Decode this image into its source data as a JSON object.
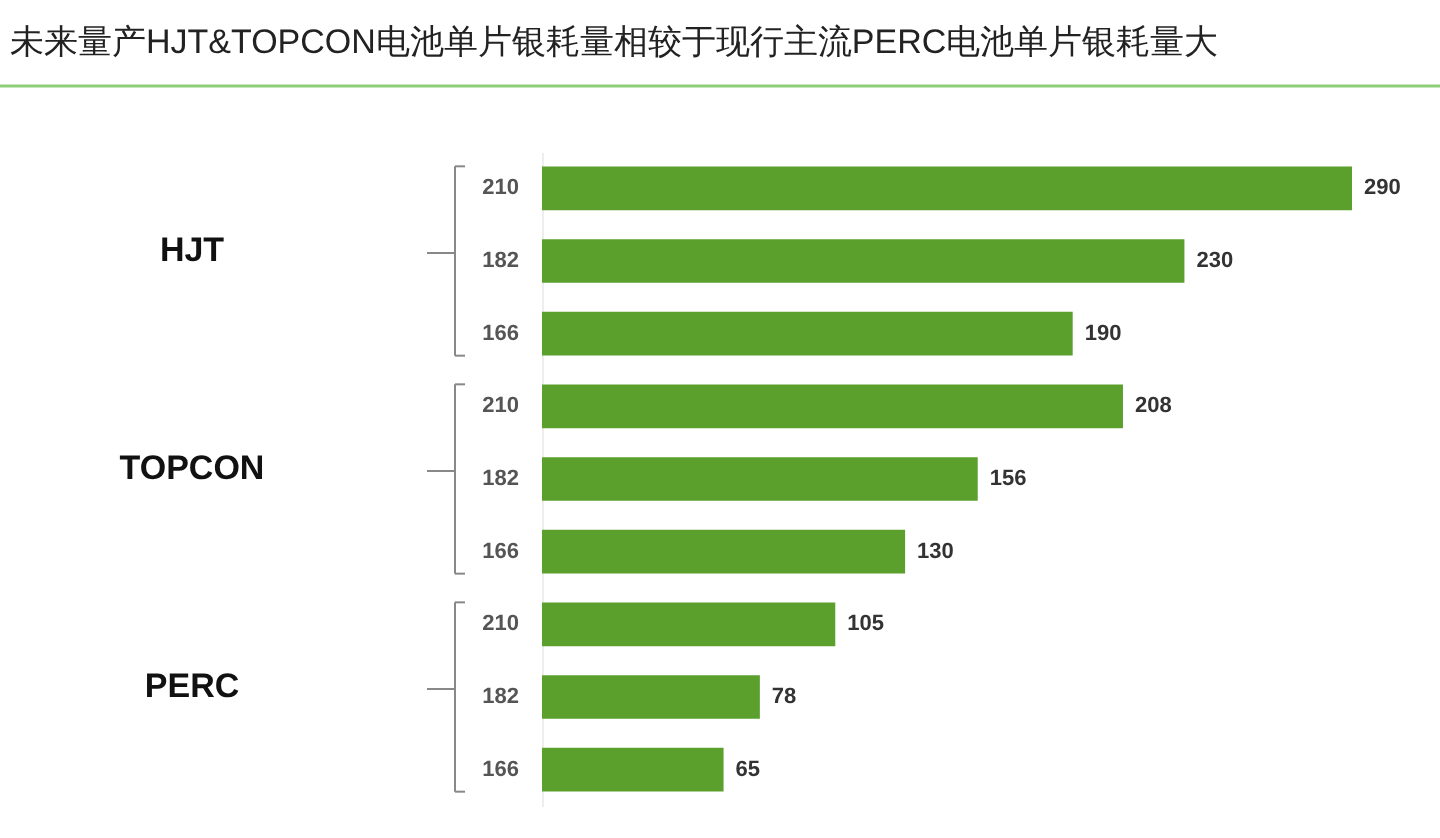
{
  "chart_data": {
    "type": "bar",
    "orientation": "horizontal",
    "title": "未来量产HJT&TOPCON电池单片银耗量相较于现行主流PERC电池单片银耗量大",
    "categories": [
      "210",
      "182",
      "166",
      "210",
      "182",
      "166",
      "210",
      "182",
      "166"
    ],
    "values": [
      290,
      230,
      190,
      208,
      156,
      130,
      105,
      78,
      65
    ],
    "color": "#5b9f2d",
    "data_labels": true,
    "tick_labels": "y",
    "annotations": [
      "HJT",
      "TOPCON",
      "PERC"
    ]
  }
}
